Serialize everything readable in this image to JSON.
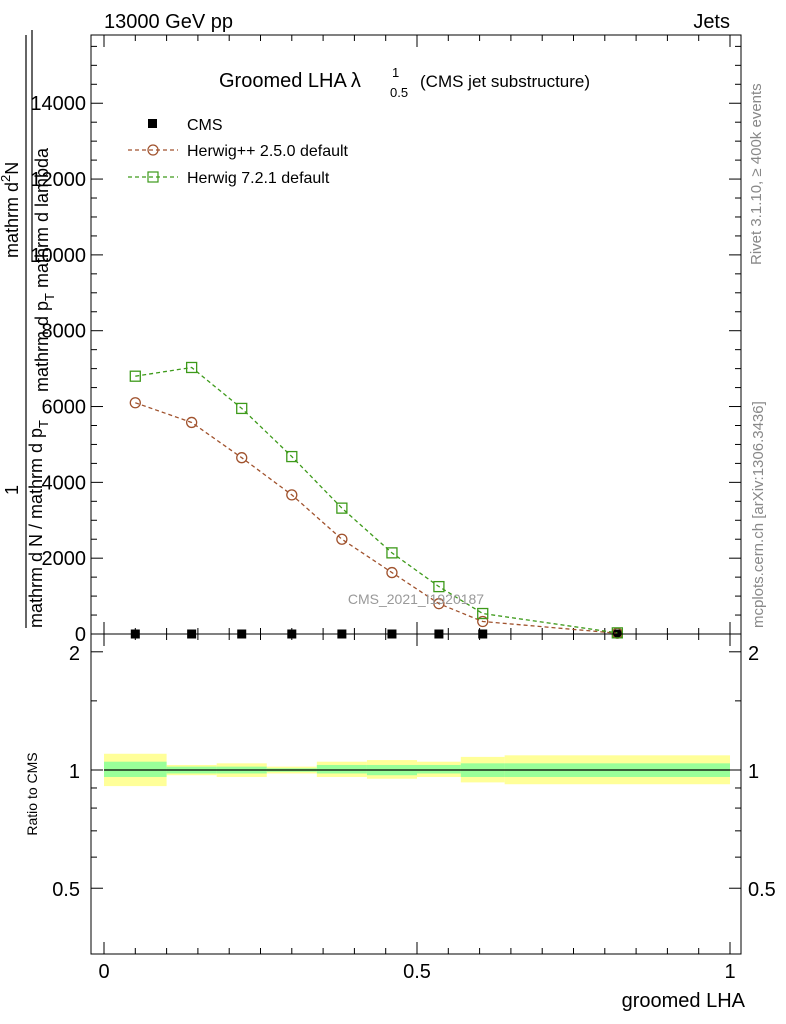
{
  "header": {
    "left": "13000 GeV pp",
    "right": "Jets"
  },
  "side_labels": {
    "rivet": "Rivet 3.1.10, ≥ 400k events",
    "mcplots": "mcplots.cern.ch [arXiv:1306.3436]"
  },
  "chart_data": [
    {
      "type": "line",
      "title_main": "Groomed LHA",
      "title_symbol": "λ",
      "title_sup": "1",
      "title_sub": "0.5",
      "title_note": "(CMS jet substructure)",
      "watermark": "CMS_2021_I1920187",
      "ylabel_lines": [
        "1",
        "mathrm d N / mathrm d p_T mathrm d p_T mathrm d lambda",
        "mathrm d^2N",
        "mathrm d N / mathrm d p_T mathrm d p_T mathrm d lambda"
      ],
      "ylabel": {
        "num_top": "mathrm d",
        "num_sup": "2",
        "num_rest": "N",
        "den": "mathrm d p",
        "den_sub": "T",
        "den_rest": " mathrm d lambda",
        "outer_num": "1",
        "outer_den": "mathrm d N / mathrm d p",
        "outer_den_sub": "T"
      },
      "xlim": [
        0,
        1
      ],
      "ylim": [
        0,
        15800
      ],
      "yticks": [
        {
          "v": 2000,
          "label": "2000"
        },
        {
          "v": 4000,
          "label": "4000"
        },
        {
          "v": 6000,
          "label": "6000"
        },
        {
          "v": 8000,
          "label": "8000"
        },
        {
          "v": 10000,
          "label": "10000"
        },
        {
          "v": 12000,
          "label": "12000"
        },
        {
          "v": 14000,
          "label": "14000"
        }
      ],
      "y_zero_label": "0",
      "legend_position": "top-left",
      "series": [
        {
          "name": "CMS",
          "style": "data",
          "color": "#000000",
          "x": [
            0.05,
            0.14,
            0.22,
            0.3,
            0.38,
            0.46,
            0.535,
            0.605,
            0.82
          ],
          "y": [
            0,
            0,
            0,
            0,
            0,
            0,
            0,
            0,
            0
          ]
        },
        {
          "name": "Herwig++ 2.5.0 default",
          "style": "circle",
          "color": "#a0522d",
          "x": [
            0.05,
            0.14,
            0.22,
            0.3,
            0.38,
            0.46,
            0.535,
            0.605,
            0.82
          ],
          "y": [
            6100,
            5580,
            4650,
            3670,
            2500,
            1620,
            800,
            330,
            20
          ]
        },
        {
          "name": "Herwig 7.2.1 default",
          "style": "square",
          "color": "#3d9a1a",
          "x": [
            0.05,
            0.14,
            0.22,
            0.3,
            0.38,
            0.46,
            0.535,
            0.605,
            0.82
          ],
          "y": [
            6800,
            7030,
            5950,
            4680,
            3320,
            2140,
            1250,
            540,
            30
          ]
        }
      ]
    },
    {
      "type": "area",
      "ylabel": "Ratio to CMS",
      "xlabel": "groomed LHA",
      "xlim": [
        0,
        1
      ],
      "ylim": [
        0.34,
        2.22
      ],
      "xticks": [
        {
          "v": 0,
          "label": "0"
        },
        {
          "v": 0.5,
          "label": "0.5"
        },
        {
          "v": 1,
          "label": "1"
        }
      ],
      "yticks": [
        {
          "v": 0.5,
          "label": "0.5"
        },
        {
          "v": 1,
          "label": "1"
        },
        {
          "v": 2,
          "label": "2"
        }
      ],
      "reference_line": 1,
      "bands": {
        "colors": {
          "syst": "#ffff99",
          "stat": "#99ff99"
        },
        "bins": [
          {
            "x0": 0.0,
            "x1": 0.1,
            "syst_lo": 0.91,
            "syst_hi": 1.1,
            "stat_lo": 0.96,
            "stat_hi": 1.05
          },
          {
            "x0": 0.1,
            "x1": 0.18,
            "syst_lo": 0.97,
            "syst_hi": 1.03,
            "stat_lo": 0.98,
            "stat_hi": 1.02
          },
          {
            "x0": 0.18,
            "x1": 0.26,
            "syst_lo": 0.96,
            "syst_hi": 1.04,
            "stat_lo": 0.98,
            "stat_hi": 1.02
          },
          {
            "x0": 0.26,
            "x1": 0.34,
            "syst_lo": 0.98,
            "syst_hi": 1.02,
            "stat_lo": 0.99,
            "stat_hi": 1.01
          },
          {
            "x0": 0.34,
            "x1": 0.42,
            "syst_lo": 0.96,
            "syst_hi": 1.05,
            "stat_lo": 0.98,
            "stat_hi": 1.03
          },
          {
            "x0": 0.42,
            "x1": 0.5,
            "syst_lo": 0.95,
            "syst_hi": 1.06,
            "stat_lo": 0.97,
            "stat_hi": 1.03
          },
          {
            "x0": 0.5,
            "x1": 0.57,
            "syst_lo": 0.96,
            "syst_hi": 1.05,
            "stat_lo": 0.98,
            "stat_hi": 1.03
          },
          {
            "x0": 0.57,
            "x1": 0.64,
            "syst_lo": 0.93,
            "syst_hi": 1.08,
            "stat_lo": 0.96,
            "stat_hi": 1.04
          },
          {
            "x0": 0.64,
            "x1": 1.0,
            "syst_lo": 0.92,
            "syst_hi": 1.09,
            "stat_lo": 0.96,
            "stat_hi": 1.04
          }
        ]
      }
    }
  ]
}
